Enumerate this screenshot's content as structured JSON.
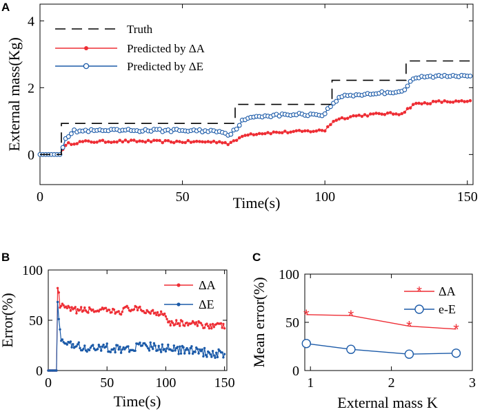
{
  "panels": {
    "a": "A",
    "b": "B",
    "c": "C"
  },
  "colors": {
    "truth": "#000000",
    "deltaA": "#ee2d34",
    "deltaE": "#1b5aa8"
  },
  "chart_data": [
    {
      "panel": "A",
      "type": "line",
      "xlabel": "Time(s)",
      "ylabel": "External mass(Kg)",
      "xlim": [
        0,
        152
      ],
      "ylim": [
        -0.9,
        4.5
      ],
      "xticks": [
        0,
        50,
        100,
        150
      ],
      "yticks": [
        0,
        2,
        4
      ],
      "legend": [
        "Truth",
        "Predicted by ΔA",
        "Predicted by ΔE"
      ],
      "legend_position": "top-left",
      "truth_steps": [
        {
          "x": [
            0,
            7.5
          ],
          "y": 0
        },
        {
          "x": [
            7.5,
            68.5
          ],
          "y": 0.93
        },
        {
          "x": [
            68.5,
            102.5
          ],
          "y": 1.5
        },
        {
          "x": [
            102.5,
            128.5
          ],
          "y": 2.22
        },
        {
          "x": [
            128.5,
            151
          ],
          "y": 2.8
        }
      ],
      "series": [
        {
          "name": "Predicted by ΔA",
          "anchors": [
            [
              0,
              0
            ],
            [
              7,
              0
            ],
            [
              8,
              0.18
            ],
            [
              10,
              0.32
            ],
            [
              15,
              0.38
            ],
            [
              30,
              0.4
            ],
            [
              50,
              0.38
            ],
            [
              64,
              0.38
            ],
            [
              66,
              0.32
            ],
            [
              68,
              0.38
            ],
            [
              72,
              0.6
            ],
            [
              80,
              0.65
            ],
            [
              95,
              0.7
            ],
            [
              100,
              0.72
            ],
            [
              101,
              0.84
            ],
            [
              104,
              1.05
            ],
            [
              110,
              1.15
            ],
            [
              120,
              1.22
            ],
            [
              126,
              1.22
            ],
            [
              128,
              1.28
            ],
            [
              131,
              1.5
            ],
            [
              140,
              1.58
            ],
            [
              151,
              1.58
            ]
          ],
          "noise": 0.035
        },
        {
          "name": "Predicted by ΔE",
          "anchors": [
            [
              0,
              0
            ],
            [
              7,
              0
            ],
            [
              9,
              0.5
            ],
            [
              12,
              0.7
            ],
            [
              30,
              0.72
            ],
            [
              50,
              0.72
            ],
            [
              64,
              0.7
            ],
            [
              66,
              0.58
            ],
            [
              68,
              0.7
            ],
            [
              71,
              1.0
            ],
            [
              76,
              1.15
            ],
            [
              90,
              1.2
            ],
            [
              100,
              1.2
            ],
            [
              101,
              1.35
            ],
            [
              103,
              1.55
            ],
            [
              106,
              1.75
            ],
            [
              125,
              1.88
            ],
            [
              128,
              1.92
            ],
            [
              130,
              2.2
            ],
            [
              134,
              2.32
            ],
            [
              151,
              2.38
            ]
          ],
          "noise": 0.04
        }
      ]
    },
    {
      "panel": "B",
      "type": "line",
      "xlabel": "Time(s)",
      "ylabel": "Error(%)",
      "xlim": [
        0,
        152
      ],
      "ylim": [
        0,
        100
      ],
      "xticks": [
        0,
        50,
        100,
        150
      ],
      "yticks": [
        0,
        50,
        100
      ],
      "legend": [
        "ΔA",
        "ΔE"
      ],
      "legend_position": "top-right",
      "series": [
        {
          "name": "ΔA",
          "anchors": [
            [
              0,
              0
            ],
            [
              7,
              0
            ],
            [
              8,
              85
            ],
            [
              10,
              64
            ],
            [
              20,
              60
            ],
            [
              40,
              60
            ],
            [
              60,
              58
            ],
            [
              68,
              62
            ],
            [
              90,
              58
            ],
            [
              100,
              57
            ],
            [
              102,
              48
            ],
            [
              150,
              44
            ]
          ],
          "noise": 3.2
        },
        {
          "name": "ΔE",
          "anchors": [
            [
              0,
              0
            ],
            [
              7,
              0
            ],
            [
              8,
              72
            ],
            [
              9,
              47
            ],
            [
              11,
              30
            ],
            [
              20,
              24
            ],
            [
              40,
              23
            ],
            [
              60,
              22
            ],
            [
              90,
              24
            ],
            [
              100,
              22
            ],
            [
              120,
              20
            ],
            [
              150,
              16
            ]
          ],
          "noise": 4.5
        }
      ]
    },
    {
      "panel": "C",
      "type": "line",
      "xlabel": "External mass K",
      "ylabel": "Mean error(%)",
      "xlim": [
        0.93,
        3.0
      ],
      "ylim": [
        0,
        100
      ],
      "xticks": [
        1,
        2,
        3
      ],
      "yticks": [
        0,
        50,
        100
      ],
      "legend": [
        "ΔA",
        "e-E"
      ],
      "legend_position": "top-right",
      "series": [
        {
          "name": "ΔA",
          "x": [
            0.95,
            1.5,
            2.22,
            2.8
          ],
          "y": [
            58,
            57,
            46,
            43
          ],
          "marker": "star"
        },
        {
          "name": "e-E",
          "x": [
            0.95,
            1.5,
            2.22,
            2.8
          ],
          "y": [
            28,
            22,
            17,
            18
          ],
          "marker": "circle"
        }
      ]
    }
  ]
}
